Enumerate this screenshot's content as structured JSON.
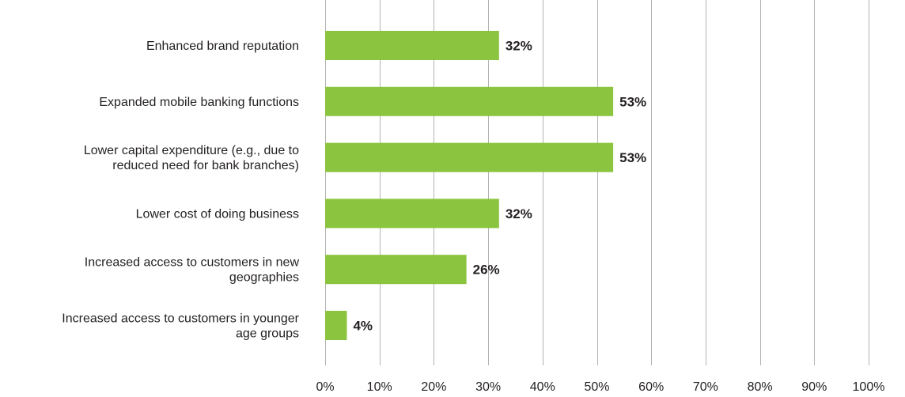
{
  "chart_data": {
    "type": "bar",
    "orientation": "horizontal",
    "categories": [
      [
        "Enhanced brand reputation"
      ],
      [
        "Expanded mobile banking functions"
      ],
      [
        "Lower capital expenditure (e.g., due to",
        "reduced need for bank branches)"
      ],
      [
        "Lower cost of doing business"
      ],
      [
        "Increased access to customers in new",
        "geographies"
      ],
      [
        "Increased access to customers in younger",
        "age groups"
      ]
    ],
    "values": [
      32,
      53,
      53,
      32,
      26,
      4
    ],
    "value_labels": [
      "32%",
      "53%",
      "53%",
      "32%",
      "26%",
      "4%"
    ],
    "xticks": [
      0,
      10,
      20,
      30,
      40,
      50,
      60,
      70,
      80,
      90,
      100
    ],
    "xtick_labels": [
      "0%",
      "10%",
      "20%",
      "30%",
      "40%",
      "50%",
      "60%",
      "70%",
      "80%",
      "90%",
      "100%"
    ],
    "xlim": [
      0,
      100
    ],
    "grid": "vertical",
    "colors": {
      "bar": "#8bc53f",
      "grid": "#b3b3b3",
      "text": "#231f20"
    }
  }
}
